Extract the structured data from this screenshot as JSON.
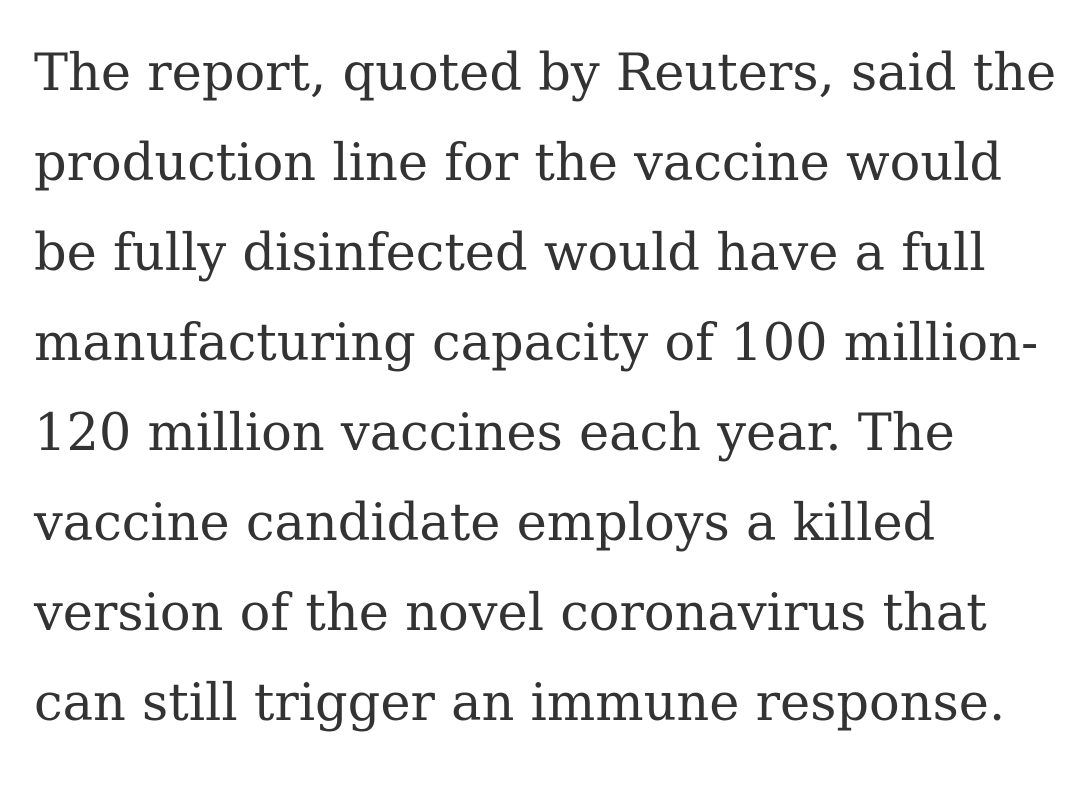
{
  "article": {
    "paragraph_lines": [
      "The report, quoted by Reuters, said the",
      "production line for the vaccine would",
      "be fully disinfected would have a full",
      "manufacturing capacity of 100 million-",
      "120 million vaccines each year. The",
      "vaccine candidate employs a killed",
      "version of the novel coronavirus that",
      "can still trigger an immune response."
    ]
  },
  "colors": {
    "text": "#333333",
    "background": "#ffffff"
  }
}
